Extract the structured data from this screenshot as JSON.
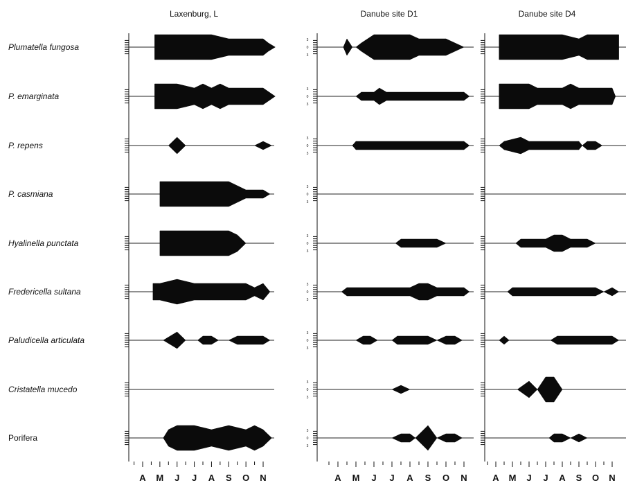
{
  "chart_data": {
    "type": "kite-diagram",
    "months": [
      "A",
      "M",
      "J",
      "J",
      "A",
      "S",
      "O",
      "N"
    ],
    "ytick_labels": [
      "3",
      "0",
      "3"
    ],
    "panels": [
      {
        "title": "Laxenburg, L",
        "species": [
          {
            "label": "Plumatella fungosa",
            "italic": true,
            "values": [
              [
                0.7,
                3
              ],
              [
                1,
                3
              ],
              [
                1.5,
                3
              ],
              [
                2,
                3
              ],
              [
                3,
                3
              ],
              [
                4,
                3
              ],
              [
                5,
                2
              ],
              [
                6,
                2
              ],
              [
                7,
                2
              ],
              [
                7.3,
                1
              ],
              [
                7.7,
                0
              ]
            ]
          },
          {
            "label": "P. emarginata",
            "italic": true,
            "values": [
              [
                0.7,
                3
              ],
              [
                1,
                3
              ],
              [
                2,
                3
              ],
              [
                3,
                2
              ],
              [
                3.5,
                3
              ],
              [
                4,
                2
              ],
              [
                4.5,
                3
              ],
              [
                5,
                2
              ],
              [
                6,
                2
              ],
              [
                7,
                2
              ],
              [
                7.7,
                0
              ]
            ]
          },
          {
            "label": "P. repens",
            "italic": true,
            "values": [
              [
                1.5,
                0
              ],
              [
                2,
                2
              ],
              [
                2.5,
                0
              ],
              [
                6.5,
                0
              ],
              [
                7,
                1
              ],
              [
                7.5,
                0
              ]
            ]
          },
          {
            "label": "P. casmiana",
            "italic": true,
            "values": [
              [
                1,
                3
              ],
              [
                2,
                3
              ],
              [
                3,
                3
              ],
              [
                4,
                3
              ],
              [
                5,
                3
              ],
              [
                5.5,
                2
              ],
              [
                6,
                1
              ],
              [
                7,
                1
              ],
              [
                7.4,
                0
              ]
            ]
          },
          {
            "label": "Hyalinella punctata",
            "italic": true,
            "values": [
              [
                1,
                3
              ],
              [
                2,
                3
              ],
              [
                3,
                3
              ],
              [
                4,
                3
              ],
              [
                5,
                3
              ],
              [
                5.5,
                2
              ],
              [
                6,
                0
              ]
            ]
          },
          {
            "label": "Fredericella sultana",
            "italic": true,
            "values": [
              [
                0.6,
                2
              ],
              [
                1,
                2
              ],
              [
                2,
                3
              ],
              [
                3,
                2
              ],
              [
                3.5,
                2
              ],
              [
                4,
                2
              ],
              [
                4.5,
                2
              ],
              [
                5,
                2
              ],
              [
                6,
                2
              ],
              [
                6.5,
                1
              ],
              [
                7,
                2
              ],
              [
                7.4,
                0
              ]
            ]
          },
          {
            "label": "Paludicella articulata",
            "italic": true,
            "values": [
              [
                1.2,
                0
              ],
              [
                2,
                2
              ],
              [
                2.5,
                0
              ],
              [
                3.2,
                0
              ],
              [
                3.5,
                1
              ],
              [
                4,
                1
              ],
              [
                4.4,
                0
              ],
              [
                5,
                0
              ],
              [
                5.5,
                1
              ],
              [
                6,
                1
              ],
              [
                7,
                1
              ],
              [
                7.4,
                0
              ]
            ]
          },
          {
            "label": "Cristatella mucedo",
            "italic": true,
            "values": []
          },
          {
            "label": "Porifera",
            "italic": false,
            "values": [
              [
                1.2,
                0
              ],
              [
                1.5,
                2
              ],
              [
                2,
                3
              ],
              [
                3,
                3
              ],
              [
                4,
                2
              ],
              [
                5,
                3
              ],
              [
                6,
                2
              ],
              [
                6.5,
                3
              ],
              [
                7,
                2
              ],
              [
                7.5,
                0
              ]
            ]
          }
        ]
      },
      {
        "title": "Danube site D1",
        "species": [
          {
            "label": "Plumatella fungosa",
            "values": [
              [
                0.3,
                0
              ],
              [
                0.5,
                2
              ],
              [
                0.8,
                0
              ],
              [
                1,
                0
              ],
              [
                1.3,
                1
              ],
              [
                2,
                3
              ],
              [
                3,
                3
              ],
              [
                4,
                3
              ],
              [
                4.5,
                2
              ],
              [
                5,
                2
              ],
              [
                6,
                2
              ],
              [
                6.5,
                1
              ],
              [
                7,
                0
              ]
            ]
          },
          {
            "label": "P. emarginata",
            "values": [
              [
                1,
                0
              ],
              [
                1.3,
                1
              ],
              [
                2,
                1
              ],
              [
                2.3,
                2
              ],
              [
                2.7,
                1
              ],
              [
                4,
                1
              ],
              [
                5,
                1
              ],
              [
                6,
                1
              ],
              [
                7,
                1
              ],
              [
                7.3,
                0
              ]
            ]
          },
          {
            "label": "P. repens",
            "values": [
              [
                0.8,
                0
              ],
              [
                1,
                1
              ],
              [
                2,
                1
              ],
              [
                3,
                1
              ],
              [
                4,
                1
              ],
              [
                5,
                1
              ],
              [
                6,
                1
              ],
              [
                7,
                1
              ],
              [
                7.3,
                0
              ]
            ]
          },
          {
            "label": "P. casmiana",
            "values": []
          },
          {
            "label": "Hyalinella punctata",
            "values": [
              [
                3.2,
                0
              ],
              [
                3.5,
                1
              ],
              [
                4,
                1
              ],
              [
                5,
                1
              ],
              [
                5.5,
                1
              ],
              [
                6,
                0
              ]
            ]
          },
          {
            "label": "Fredericella sultana",
            "values": [
              [
                0.2,
                0
              ],
              [
                0.5,
                1
              ],
              [
                1,
                1
              ],
              [
                2,
                1
              ],
              [
                3,
                1
              ],
              [
                4,
                1
              ],
              [
                4.5,
                2
              ],
              [
                5,
                2
              ],
              [
                5.5,
                1
              ],
              [
                7,
                1
              ],
              [
                7.3,
                0
              ]
            ]
          },
          {
            "label": "Paludicella articulata",
            "values": [
              [
                1,
                0
              ],
              [
                1.4,
                1
              ],
              [
                1.8,
                1
              ],
              [
                2.2,
                0
              ],
              [
                3,
                0
              ],
              [
                3.3,
                1
              ],
              [
                4,
                1
              ],
              [
                5,
                1
              ],
              [
                5.5,
                0
              ],
              [
                6,
                1
              ],
              [
                6.5,
                1
              ],
              [
                6.9,
                0
              ]
            ]
          },
          {
            "label": "Cristatella mucedo",
            "values": [
              [
                3,
                0
              ],
              [
                3.5,
                1
              ],
              [
                4,
                0
              ]
            ]
          },
          {
            "label": "Porifera",
            "values": [
              [
                3,
                0
              ],
              [
                3.5,
                1
              ],
              [
                4,
                1
              ],
              [
                4.3,
                0
              ],
              [
                5,
                3
              ],
              [
                5.5,
                0
              ],
              [
                6,
                1
              ],
              [
                6.5,
                1
              ],
              [
                6.9,
                0
              ]
            ]
          }
        ]
      },
      {
        "title": "Danube site D4",
        "species": [
          {
            "label": "Plumatella fungosa",
            "values": [
              [
                0.2,
                3
              ],
              [
                1,
                3
              ],
              [
                2,
                3
              ],
              [
                3,
                3
              ],
              [
                4,
                3
              ],
              [
                5,
                2
              ],
              [
                5.5,
                3
              ],
              [
                6,
                3
              ],
              [
                7,
                3
              ],
              [
                7.4,
                3
              ]
            ]
          },
          {
            "label": "P. emarginata",
            "values": [
              [
                0.2,
                3
              ],
              [
                1,
                3
              ],
              [
                2,
                3
              ],
              [
                2.5,
                2
              ],
              [
                3,
                2
              ],
              [
                4,
                2
              ],
              [
                4.5,
                3
              ],
              [
                5,
                2
              ],
              [
                6,
                2
              ],
              [
                7,
                2
              ],
              [
                7.2,
                0
              ]
            ]
          },
          {
            "label": "P. repens",
            "values": [
              [
                0.2,
                0
              ],
              [
                0.5,
                1
              ],
              [
                1.5,
                2
              ],
              [
                2,
                1
              ],
              [
                3,
                1
              ],
              [
                4,
                1
              ],
              [
                5,
                1
              ],
              [
                5.2,
                0
              ],
              [
                5.5,
                1
              ],
              [
                6,
                1
              ],
              [
                6.4,
                0
              ]
            ]
          },
          {
            "label": "P. casmiana",
            "values": []
          },
          {
            "label": "Hyalinella punctata",
            "values": [
              [
                1.2,
                0
              ],
              [
                1.5,
                1
              ],
              [
                3,
                1
              ],
              [
                3.5,
                2
              ],
              [
                4,
                2
              ],
              [
                4.5,
                1
              ],
              [
                5,
                1
              ],
              [
                5.5,
                1
              ],
              [
                6,
                0
              ]
            ]
          },
          {
            "label": "Fredericella sultana",
            "values": [
              [
                0.7,
                0
              ],
              [
                1,
                1
              ],
              [
                2,
                1
              ],
              [
                3,
                1
              ],
              [
                4,
                1
              ],
              [
                5,
                1
              ],
              [
                6,
                1
              ],
              [
                6.5,
                0
              ],
              [
                7,
                1
              ],
              [
                7.4,
                0
              ]
            ]
          },
          {
            "label": "Paludicella articulata",
            "values": [
              [
                0.2,
                0
              ],
              [
                0.5,
                1
              ],
              [
                0.8,
                0
              ],
              [
                3.3,
                0
              ],
              [
                3.7,
                1
              ],
              [
                4,
                1
              ],
              [
                5,
                1
              ],
              [
                6,
                1
              ],
              [
                7,
                1
              ],
              [
                7.4,
                0
              ]
            ]
          },
          {
            "label": "Cristatella mucedo",
            "values": [
              [
                1.3,
                0
              ],
              [
                2,
                2
              ],
              [
                2.5,
                0
              ],
              [
                3,
                3
              ],
              [
                3.5,
                3
              ],
              [
                4,
                0
              ]
            ]
          },
          {
            "label": "Porifera",
            "values": [
              [
                3.2,
                0
              ],
              [
                3.5,
                1
              ],
              [
                4,
                1
              ],
              [
                4.5,
                0
              ],
              [
                5,
                1
              ],
              [
                5.5,
                0
              ]
            ]
          }
        ]
      }
    ]
  }
}
